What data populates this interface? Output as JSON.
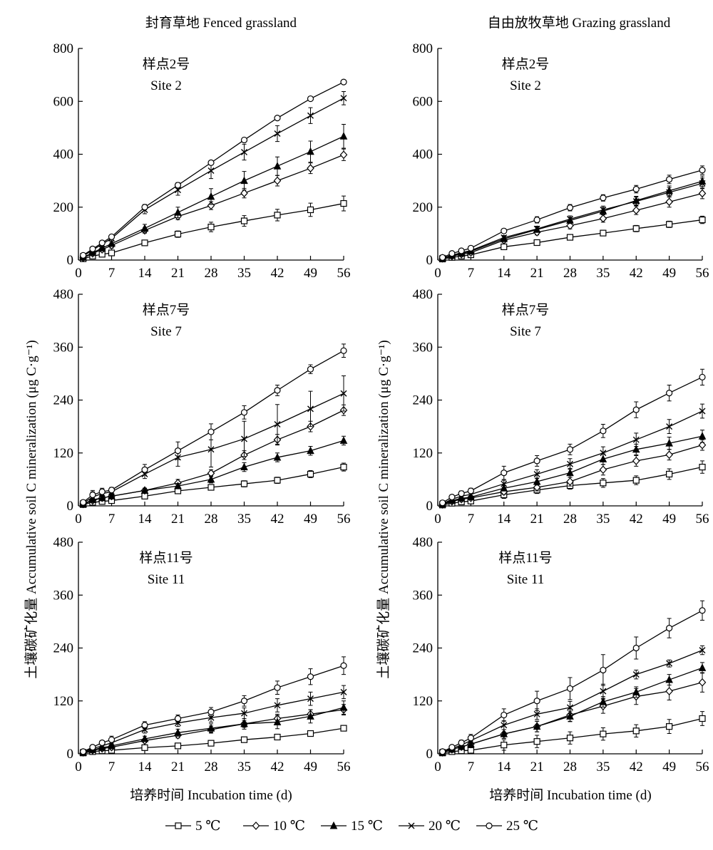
{
  "column_titles": [
    "封育草地 Fenced grassland",
    "自由放牧草地 Grazing grassland"
  ],
  "x_label": "培养时间  Incubation time (d)",
  "y_label": "土壤碳矿化量  Accumulative soil C mineralization  (μg C·g⁻¹)",
  "legend": {
    "entries": [
      {
        "label": "5 ℃",
        "marker": "square"
      },
      {
        "label": "10 ℃",
        "marker": "diamond"
      },
      {
        "label": "15 ℃",
        "marker": "triangle"
      },
      {
        "label": "20 ℃",
        "marker": "cross"
      },
      {
        "label": "25 ℃",
        "marker": "circle"
      }
    ]
  },
  "chart_data": [
    {
      "type": "line",
      "panel": "fenced-site-2",
      "label_cn": "样点2号",
      "label_en": "Site 2",
      "x": [
        1,
        3,
        5,
        7,
        14,
        21,
        28,
        35,
        42,
        49,
        56
      ],
      "xticks": [
        0,
        7,
        14,
        21,
        28,
        35,
        42,
        49,
        56
      ],
      "xlim": [
        0,
        56
      ],
      "ylim": [
        0,
        800
      ],
      "yticks": [
        0,
        200,
        400,
        600,
        800
      ],
      "series": [
        {
          "name": "5 ℃",
          "values": [
            5,
            15,
            22,
            27,
            65,
            98,
            125,
            148,
            170,
            190,
            214
          ],
          "err": [
            3,
            5,
            8,
            10,
            10,
            12,
            18,
            20,
            22,
            25,
            28
          ]
        },
        {
          "name": "10 ℃",
          "values": [
            8,
            25,
            40,
            55,
            112,
            165,
            206,
            253,
            300,
            347,
            398
          ],
          "err": [
            3,
            6,
            8,
            10,
            10,
            12,
            15,
            18,
            20,
            20,
            22
          ]
        },
        {
          "name": "15 ℃",
          "values": [
            10,
            28,
            45,
            62,
            120,
            180,
            240,
            300,
            355,
            410,
            468
          ],
          "err": [
            3,
            5,
            7,
            10,
            15,
            20,
            30,
            35,
            35,
            40,
            45
          ]
        },
        {
          "name": "20 ℃",
          "values": [
            15,
            38,
            60,
            82,
            190,
            265,
            338,
            408,
            478,
            546,
            612
          ],
          "err": [
            3,
            5,
            7,
            10,
            15,
            20,
            30,
            30,
            30,
            30,
            25
          ]
        },
        {
          "name": "25 ℃",
          "values": [
            18,
            42,
            65,
            88,
            200,
            283,
            368,
            454,
            537,
            610,
            673
          ],
          "err": [
            3,
            5,
            5,
            5,
            10,
            10,
            8,
            8,
            6,
            6,
            8
          ]
        }
      ]
    },
    {
      "type": "line",
      "panel": "grazing-site-2",
      "label_cn": "样点2号",
      "label_en": "Site 2",
      "x": [
        1,
        3,
        5,
        7,
        14,
        21,
        28,
        35,
        42,
        49,
        56
      ],
      "xticks": [
        0,
        7,
        14,
        21,
        28,
        35,
        42,
        49,
        56
      ],
      "xlim": [
        0,
        56
      ],
      "ylim": [
        0,
        800
      ],
      "yticks": [
        0,
        200,
        400,
        600,
        800
      ],
      "series": [
        {
          "name": "5 ℃",
          "values": [
            4,
            10,
            15,
            20,
            50,
            66,
            86,
            102,
            119,
            135,
            152
          ],
          "err": [
            2,
            3,
            3,
            4,
            6,
            8,
            8,
            10,
            12,
            12,
            14
          ]
        },
        {
          "name": "10 ℃",
          "values": [
            6,
            15,
            22,
            28,
            75,
            105,
            130,
            157,
            188,
            220,
            252
          ],
          "err": [
            2,
            3,
            4,
            5,
            8,
            10,
            12,
            14,
            16,
            20,
            20
          ]
        },
        {
          "name": "15 ℃",
          "values": [
            7,
            17,
            25,
            33,
            80,
            115,
            150,
            185,
            225,
            262,
            298
          ],
          "err": [
            2,
            3,
            4,
            5,
            8,
            10,
            12,
            14,
            16,
            18,
            20
          ]
        },
        {
          "name": "20 ℃",
          "values": [
            8,
            18,
            28,
            36,
            85,
            118,
            155,
            190,
            222,
            256,
            290
          ],
          "err": [
            2,
            3,
            4,
            5,
            8,
            10,
            12,
            14,
            16,
            18,
            20
          ]
        },
        {
          "name": "25 ℃",
          "values": [
            10,
            25,
            35,
            45,
            110,
            152,
            198,
            235,
            268,
            305,
            340
          ],
          "err": [
            2,
            3,
            4,
            5,
            8,
            12,
            12,
            12,
            14,
            16,
            16
          ]
        }
      ]
    },
    {
      "type": "line",
      "panel": "fenced-site-7",
      "label_cn": "样点7号",
      "label_en": "Site 7",
      "x": [
        1,
        3,
        5,
        7,
        14,
        21,
        28,
        35,
        42,
        49,
        56
      ],
      "xticks": [
        0,
        7,
        14,
        21,
        28,
        35,
        42,
        49,
        56
      ],
      "xlim": [
        0,
        56
      ],
      "ylim": [
        0,
        480
      ],
      "yticks": [
        0,
        120,
        240,
        360,
        480
      ],
      "series": [
        {
          "name": "5 ℃",
          "values": [
            3,
            8,
            10,
            12,
            22,
            34,
            42,
            50,
            58,
            72,
            88
          ],
          "err": [
            2,
            3,
            4,
            5,
            5,
            6,
            6,
            7,
            7,
            8,
            9
          ]
        },
        {
          "name": "10 ℃",
          "values": [
            4,
            12,
            18,
            22,
            35,
            52,
            74,
            115,
            150,
            180,
            217
          ],
          "err": [
            2,
            4,
            5,
            6,
            5,
            8,
            8,
            10,
            12,
            12,
            12
          ]
        },
        {
          "name": "15 ℃",
          "values": [
            4,
            14,
            18,
            22,
            35,
            45,
            60,
            88,
            110,
            125,
            148
          ],
          "err": [
            2,
            4,
            5,
            6,
            5,
            6,
            8,
            10,
            10,
            10,
            10
          ]
        },
        {
          "name": "20 ℃",
          "values": [
            6,
            20,
            28,
            32,
            72,
            110,
            128,
            152,
            185,
            220,
            255
          ],
          "err": [
            3,
            12,
            10,
            8,
            10,
            20,
            40,
            40,
            45,
            40,
            40
          ]
        },
        {
          "name": "25 ℃",
          "values": [
            8,
            25,
            32,
            36,
            82,
            125,
            168,
            212,
            262,
            310,
            352
          ],
          "err": [
            3,
            10,
            8,
            6,
            12,
            20,
            18,
            15,
            12,
            10,
            15
          ]
        }
      ]
    },
    {
      "type": "line",
      "panel": "grazing-site-7",
      "label_cn": "样点7号",
      "label_en": "Site 7",
      "x": [
        1,
        3,
        5,
        7,
        14,
        21,
        28,
        35,
        42,
        49,
        56
      ],
      "xticks": [
        0,
        7,
        14,
        21,
        28,
        35,
        42,
        49,
        56
      ],
      "xlim": [
        0,
        56
      ],
      "ylim": [
        0,
        480
      ],
      "yticks": [
        0,
        120,
        240,
        360,
        480
      ],
      "series": [
        {
          "name": "5 ℃",
          "values": [
            2,
            6,
            9,
            11,
            25,
            36,
            46,
            52,
            58,
            72,
            88
          ],
          "err": [
            2,
            3,
            3,
            4,
            8,
            8,
            8,
            10,
            10,
            12,
            14
          ]
        },
        {
          "name": "10 ℃",
          "values": [
            3,
            10,
            15,
            18,
            32,
            42,
            55,
            82,
            102,
            116,
            138
          ],
          "err": [
            2,
            3,
            4,
            4,
            6,
            8,
            10,
            12,
            12,
            12,
            12
          ]
        },
        {
          "name": "15 ℃",
          "values": [
            4,
            12,
            17,
            20,
            40,
            55,
            75,
            106,
            128,
            142,
            158
          ],
          "err": [
            2,
            3,
            4,
            4,
            6,
            8,
            10,
            12,
            12,
            14,
            14
          ]
        },
        {
          "name": "20 ℃",
          "values": [
            5,
            15,
            22,
            26,
            50,
            72,
            95,
            120,
            150,
            180,
            215
          ],
          "err": [
            2,
            4,
            5,
            5,
            8,
            10,
            12,
            14,
            15,
            16,
            16
          ]
        },
        {
          "name": "25 ℃",
          "values": [
            7,
            20,
            28,
            34,
            75,
            102,
            128,
            170,
            218,
            256,
            292
          ],
          "err": [
            3,
            5,
            6,
            6,
            15,
            12,
            12,
            15,
            18,
            18,
            18
          ]
        }
      ]
    },
    {
      "type": "line",
      "panel": "fenced-site-11",
      "label_cn": "样点11号",
      "label_en": "Site 11",
      "x": [
        1,
        3,
        5,
        7,
        14,
        21,
        28,
        35,
        42,
        49,
        56
      ],
      "xticks": [
        0,
        7,
        14,
        21,
        28,
        35,
        42,
        49,
        56
      ],
      "xlim": [
        0,
        56
      ],
      "ylim": [
        0,
        480
      ],
      "yticks": [
        0,
        120,
        240,
        360,
        480
      ],
      "series": [
        {
          "name": "5 ℃",
          "values": [
            2,
            5,
            7,
            8,
            14,
            18,
            24,
            32,
            38,
            46,
            58
          ],
          "err": [
            2,
            3,
            3,
            3,
            4,
            5,
            5,
            5,
            5,
            5,
            6
          ]
        },
        {
          "name": "10 ℃",
          "values": [
            3,
            8,
            12,
            15,
            30,
            42,
            55,
            68,
            80,
            90,
            100
          ],
          "err": [
            2,
            3,
            4,
            5,
            5,
            6,
            8,
            8,
            10,
            10,
            12
          ]
        },
        {
          "name": "15 ℃",
          "values": [
            3,
            9,
            14,
            18,
            34,
            48,
            58,
            68,
            72,
            85,
            105
          ],
          "err": [
            2,
            4,
            5,
            6,
            6,
            8,
            10,
            12,
            15,
            15,
            15
          ]
        },
        {
          "name": "20 ℃",
          "values": [
            4,
            12,
            18,
            25,
            55,
            70,
            82,
            92,
            110,
            125,
            140
          ],
          "err": [
            2,
            4,
            5,
            6,
            8,
            8,
            10,
            12,
            15,
            15,
            15
          ]
        },
        {
          "name": "25 ℃",
          "values": [
            5,
            15,
            25,
            32,
            65,
            80,
            95,
            120,
            150,
            175,
            200
          ],
          "err": [
            2,
            4,
            5,
            8,
            8,
            8,
            10,
            12,
            15,
            18,
            20
          ]
        }
      ]
    },
    {
      "type": "line",
      "panel": "grazing-site-11",
      "label_cn": "样点11号",
      "label_en": "Site 11",
      "x": [
        1,
        3,
        5,
        7,
        14,
        21,
        28,
        35,
        42,
        49,
        56
      ],
      "xticks": [
        0,
        7,
        14,
        21,
        28,
        35,
        42,
        49,
        56
      ],
      "xlim": [
        0,
        56
      ],
      "ylim": [
        0,
        480
      ],
      "yticks": [
        0,
        120,
        240,
        360,
        480
      ],
      "series": [
        {
          "name": "5 ℃",
          "values": [
            2,
            5,
            7,
            8,
            20,
            28,
            36,
            45,
            52,
            62,
            80
          ],
          "err": [
            2,
            3,
            4,
            5,
            12,
            14,
            14,
            14,
            14,
            16,
            16
          ]
        },
        {
          "name": "10 ℃",
          "values": [
            3,
            10,
            16,
            22,
            45,
            62,
            88,
            108,
            130,
            142,
            162
          ],
          "err": [
            2,
            4,
            6,
            8,
            10,
            12,
            14,
            16,
            18,
            20,
            22
          ]
        },
        {
          "name": "15 ℃",
          "values": [
            3,
            10,
            16,
            22,
            45,
            62,
            85,
            118,
            140,
            168,
            195
          ],
          "err": [
            2,
            4,
            6,
            8,
            10,
            12,
            12,
            12,
            12,
            12,
            12
          ]
        },
        {
          "name": "20 ℃",
          "values": [
            4,
            12,
            20,
            30,
            65,
            90,
            105,
            142,
            180,
            205,
            235
          ],
          "err": [
            2,
            4,
            6,
            8,
            10,
            12,
            14,
            16,
            10,
            8,
            10
          ]
        },
        {
          "name": "25 ℃",
          "values": [
            5,
            15,
            25,
            36,
            88,
            120,
            148,
            190,
            240,
            285,
            325
          ],
          "err": [
            2,
            4,
            6,
            8,
            14,
            22,
            25,
            35,
            25,
            22,
            22
          ]
        }
      ]
    }
  ]
}
